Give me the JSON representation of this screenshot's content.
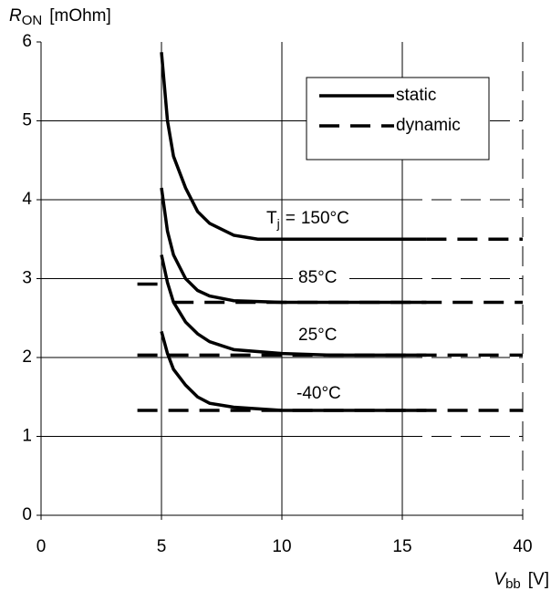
{
  "chart_data": {
    "type": "line",
    "ylabel": {
      "symbol": "R",
      "subscript": "ON",
      "unit": "[mOhm]"
    },
    "xlabel": {
      "symbol": "V",
      "subscript": "bb",
      "unit": "[V]"
    },
    "temperature_label": {
      "symbol": "T",
      "subscript": "j",
      "equals": "="
    },
    "xticks": [
      0,
      5,
      10,
      15,
      40
    ],
    "ylim": [
      0,
      6
    ],
    "yticks": [
      0,
      1,
      2,
      3,
      4,
      5,
      6
    ],
    "grid": true,
    "color": "#000000",
    "styles": [
      {
        "name": "static",
        "dash": "solid"
      },
      {
        "name": "dynamic",
        "dash": "dashed"
      }
    ],
    "series": [
      {
        "name": "150°C",
        "static": {
          "x": [
            5,
            5.25,
            5.5,
            6,
            6.5,
            7,
            8,
            9,
            10,
            12,
            15,
            20
          ],
          "values": [
            5.87,
            5.0,
            4.55,
            4.15,
            3.85,
            3.7,
            3.55,
            3.5,
            3.5,
            3.5,
            3.5,
            3.5
          ]
        },
        "dynamic": {
          "x": [
            20,
            40
          ],
          "values": [
            3.5,
            3.5
          ]
        }
      },
      {
        "name": "85°C",
        "static": {
          "x": [
            5,
            5.25,
            5.5,
            6,
            6.5,
            7,
            8,
            10,
            12,
            15,
            20
          ],
          "values": [
            4.15,
            3.6,
            3.3,
            3.0,
            2.85,
            2.78,
            2.72,
            2.7,
            2.7,
            2.7,
            2.7
          ]
        },
        "dynamic": {
          "x": [
            4,
            5,
            5.2,
            5.5,
            40
          ],
          "values": [
            2.93,
            2.93,
            null,
            2.7,
            2.7
          ]
        }
      },
      {
        "name": "25°C",
        "static": {
          "x": [
            5,
            5.25,
            5.5,
            6,
            6.5,
            7,
            8,
            10,
            12,
            15,
            20
          ],
          "values": [
            3.3,
            2.95,
            2.7,
            2.45,
            2.3,
            2.2,
            2.1,
            2.05,
            2.03,
            2.03,
            2.03
          ]
        },
        "dynamic": {
          "x": [
            4,
            40
          ],
          "values": [
            2.03,
            2.03
          ]
        }
      },
      {
        "name": "-40°C",
        "static": {
          "x": [
            5,
            5.25,
            5.5,
            6,
            6.5,
            7,
            8,
            10,
            15,
            20
          ],
          "values": [
            2.33,
            2.05,
            1.85,
            1.65,
            1.5,
            1.42,
            1.37,
            1.33,
            1.33,
            1.33
          ]
        },
        "dynamic": {
          "x": [
            4,
            40
          ],
          "values": [
            1.33,
            1.33
          ]
        }
      }
    ]
  }
}
